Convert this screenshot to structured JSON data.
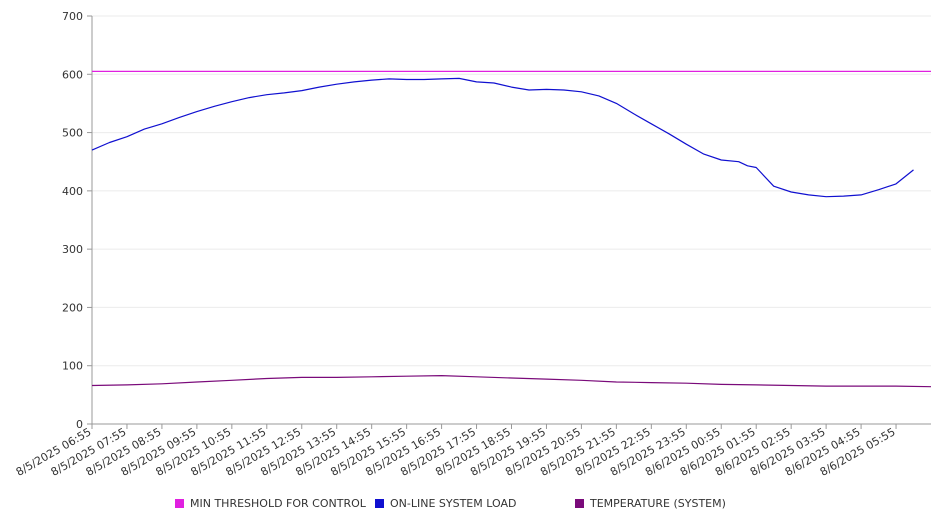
{
  "chart_data": {
    "type": "line",
    "title": "",
    "xlabel": "",
    "ylabel": "",
    "ylim": [
      0,
      700
    ],
    "yticks": [
      "0",
      "100",
      "200",
      "300",
      "400",
      "500",
      "600",
      "700"
    ],
    "grid": true,
    "legend_position": "bottom",
    "x_tick_labels": [
      "8/5/2025 06:55",
      "8/5/2025 07:55",
      "8/5/2025 08:55",
      "8/5/2025 09:55",
      "8/5/2025 10:55",
      "8/5/2025 11:55",
      "8/5/2025 12:55",
      "8/5/2025 13:55",
      "8/5/2025 14:55",
      "8/5/2025 15:55",
      "8/5/2025 16:55",
      "8/5/2025 17:55",
      "8/5/2025 18:55",
      "8/5/2025 19:55",
      "8/5/2025 20:55",
      "8/5/2025 21:55",
      "8/5/2025 22:55",
      "8/5/2025 23:55",
      "8/6/2025 00:55",
      "8/6/2025 01:55",
      "8/6/2025 02:55",
      "8/6/2025 03:55",
      "8/6/2025 04:55",
      "8/6/2025 05:55"
    ],
    "series": [
      {
        "name": "MIN THRESHOLD FOR CONTROL",
        "color": "#e020e0",
        "x": [
          "8/5/2025 06:55",
          "8/6/2025 06:55"
        ],
        "values": [
          605,
          605
        ]
      },
      {
        "name": "ON-LINE SYSTEM LOAD",
        "color": "#1010d0",
        "x": [
          "8/5/2025 06:55",
          "8/5/2025 07:25",
          "8/5/2025 07:55",
          "8/5/2025 08:25",
          "8/5/2025 08:55",
          "8/5/2025 09:25",
          "8/5/2025 09:55",
          "8/5/2025 10:25",
          "8/5/2025 10:55",
          "8/5/2025 11:25",
          "8/5/2025 11:55",
          "8/5/2025 12:25",
          "8/5/2025 12:55",
          "8/5/2025 13:25",
          "8/5/2025 13:55",
          "8/5/2025 14:25",
          "8/5/2025 14:55",
          "8/5/2025 15:25",
          "8/5/2025 15:55",
          "8/5/2025 16:25",
          "8/5/2025 16:55",
          "8/5/2025 17:25",
          "8/5/2025 17:55",
          "8/5/2025 18:25",
          "8/5/2025 18:55",
          "8/5/2025 19:25",
          "8/5/2025 19:55",
          "8/5/2025 20:25",
          "8/5/2025 20:55",
          "8/5/2025 21:25",
          "8/5/2025 21:55",
          "8/5/2025 22:25",
          "8/5/2025 22:55",
          "8/5/2025 23:25",
          "8/5/2025 23:55",
          "8/6/2025 00:25",
          "8/6/2025 00:55",
          "8/6/2025 01:25",
          "8/6/2025 01:40",
          "8/6/2025 01:55",
          "8/6/2025 02:25",
          "8/6/2025 02:55",
          "8/6/2025 03:25",
          "8/6/2025 03:55",
          "8/6/2025 04:25",
          "8/6/2025 04:55",
          "8/6/2025 05:25",
          "8/6/2025 05:55",
          "8/6/2025 06:25"
        ],
        "values": [
          470,
          483,
          493,
          506,
          515,
          526,
          536,
          545,
          553,
          560,
          565,
          568,
          572,
          578,
          583,
          587,
          590,
          592,
          591,
          591,
          592,
          593,
          587,
          585,
          578,
          573,
          574,
          573,
          570,
          563,
          550,
          532,
          515,
          498,
          480,
          463,
          453,
          450,
          443,
          440,
          408,
          398,
          393,
          390,
          391,
          393,
          402,
          412,
          436
        ]
      },
      {
        "name": "TEMPERATURE (SYSTEM)",
        "color": "#7a0a7a",
        "x": [
          "8/5/2025 06:55",
          "8/5/2025 07:55",
          "8/5/2025 08:55",
          "8/5/2025 09:55",
          "8/5/2025 10:55",
          "8/5/2025 11:55",
          "8/5/2025 12:55",
          "8/5/2025 13:55",
          "8/5/2025 14:55",
          "8/5/2025 15:55",
          "8/5/2025 16:55",
          "8/5/2025 17:55",
          "8/5/2025 18:55",
          "8/5/2025 19:55",
          "8/5/2025 20:55",
          "8/5/2025 21:55",
          "8/5/2025 22:55",
          "8/5/2025 23:55",
          "8/6/2025 00:55",
          "8/6/2025 01:55",
          "8/6/2025 02:55",
          "8/6/2025 03:55",
          "8/6/2025 04:55",
          "8/6/2025 05:55",
          "8/6/2025 06:55"
        ],
        "values": [
          66,
          67,
          69,
          72,
          75,
          78,
          80,
          80,
          81,
          82,
          83,
          81,
          79,
          77,
          75,
          72,
          71,
          70,
          68,
          67,
          66,
          65,
          65,
          65,
          64
        ]
      }
    ]
  }
}
